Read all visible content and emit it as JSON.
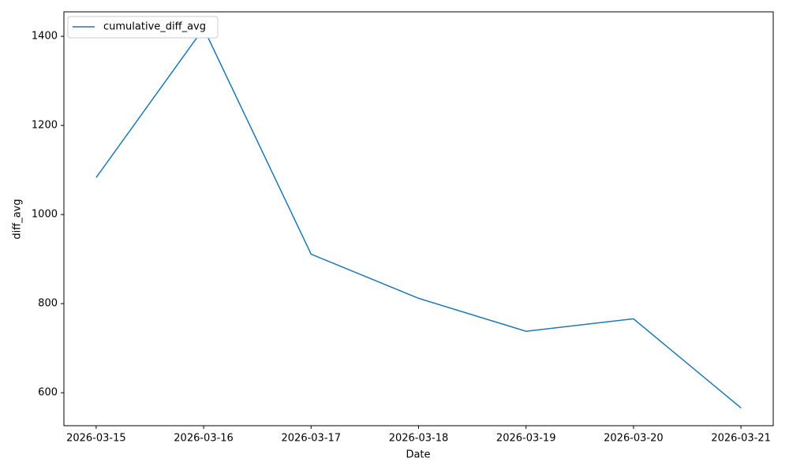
{
  "chart_data": {
    "type": "line",
    "x_label": "Date",
    "y_label": "diff_avg",
    "x": [
      "2026-03-15",
      "2026-03-16",
      "2026-03-17",
      "2026-03-18",
      "2026-03-19",
      "2026-03-20",
      "2026-03-21"
    ],
    "series": [
      {
        "name": "cumulative_diff_avg",
        "color": "#1f77b4",
        "values": [
          1083,
          1418,
          911,
          812,
          738,
          766,
          566
        ]
      }
    ],
    "ylim": [
      526,
      1455
    ],
    "yticks": [
      600,
      800,
      1000,
      1200,
      1400
    ],
    "grid": false,
    "legend": "upper left"
  }
}
